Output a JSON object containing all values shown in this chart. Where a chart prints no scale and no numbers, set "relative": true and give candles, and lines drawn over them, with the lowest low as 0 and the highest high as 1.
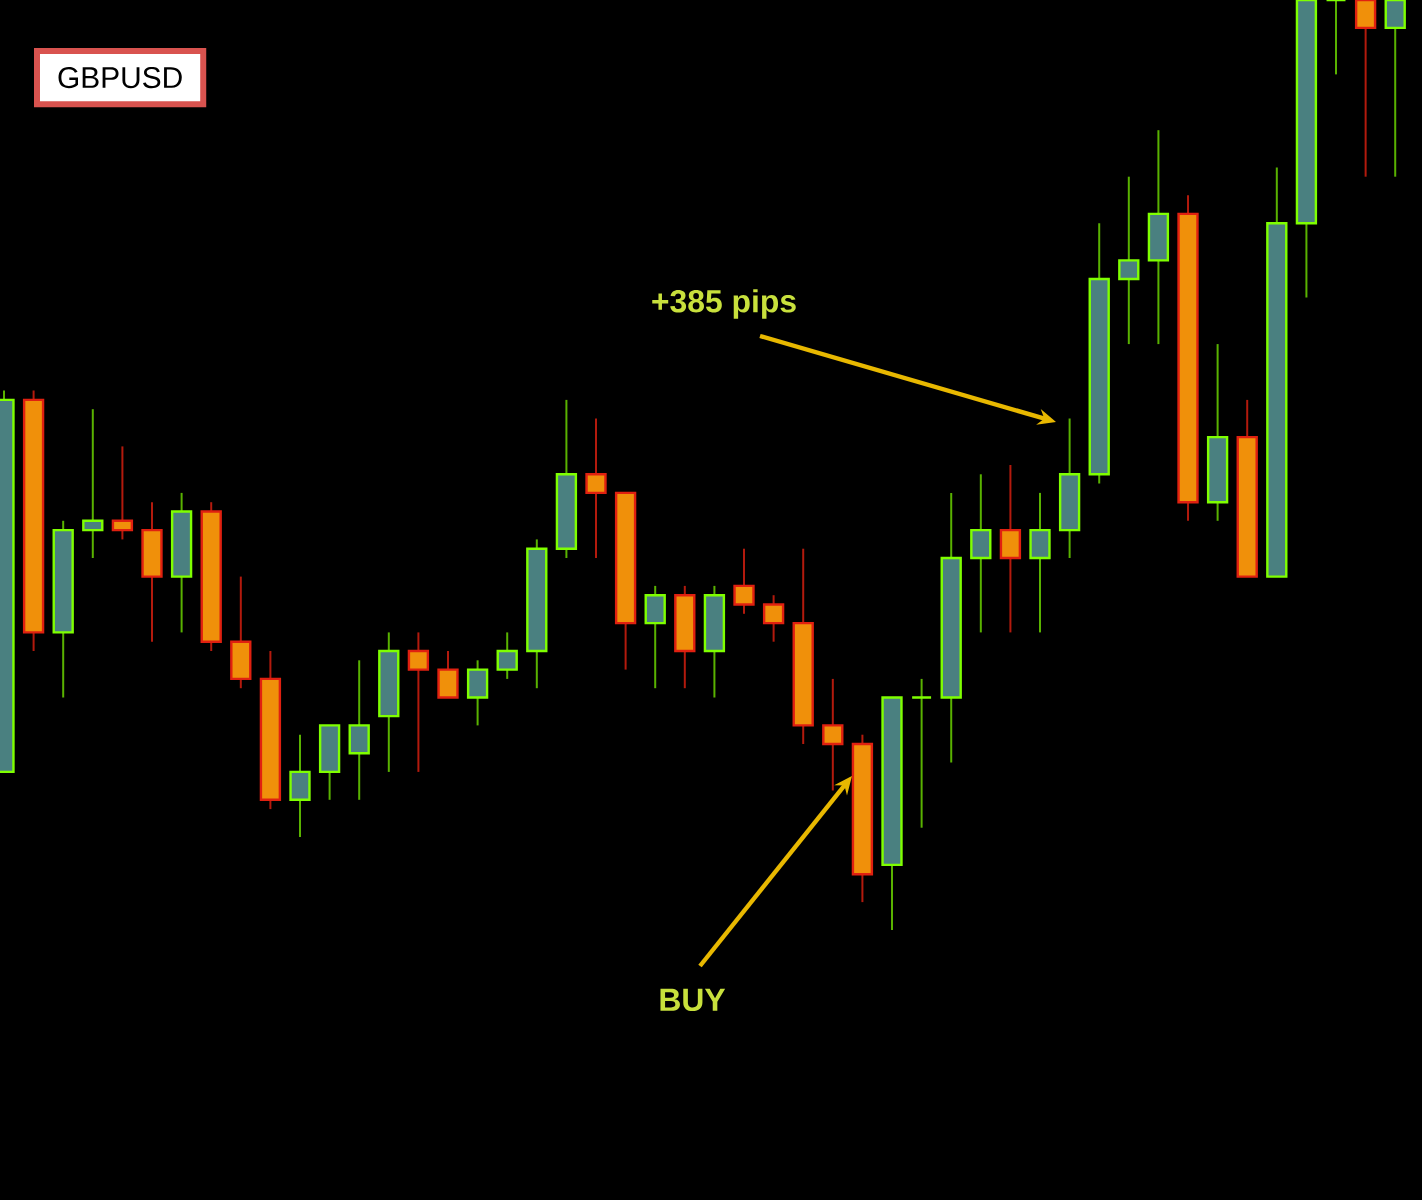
{
  "chart_data": {
    "type": "candlestick",
    "title": "GBPUSD",
    "relative": true,
    "annotations": [
      "+385 pips",
      "BUY"
    ],
    "categories": [
      null,
      null,
      null,
      null,
      null,
      null,
      null,
      null,
      null,
      null,
      null,
      null,
      null,
      null,
      null,
      null,
      null,
      null,
      null,
      null,
      null,
      null,
      null,
      null,
      null,
      null,
      null,
      null,
      null,
      null,
      null,
      null,
      null,
      null,
      null,
      null,
      null,
      null,
      null,
      null,
      null,
      null,
      null,
      null,
      null,
      null,
      null,
      null
    ],
    "ohlc": [
      [
        0.17,
        0.58,
        0.17,
        0.57
      ],
      [
        0.57,
        0.58,
        0.3,
        0.32
      ],
      [
        0.32,
        0.44,
        0.25,
        0.43
      ],
      [
        0.43,
        0.56,
        0.4,
        0.44
      ],
      [
        0.44,
        0.52,
        0.42,
        0.43
      ],
      [
        0.43,
        0.46,
        0.31,
        0.38
      ],
      [
        0.38,
        0.47,
        0.32,
        0.45
      ],
      [
        0.45,
        0.46,
        0.3,
        0.31
      ],
      [
        0.31,
        0.38,
        0.26,
        0.27
      ],
      [
        0.27,
        0.3,
        0.13,
        0.14
      ],
      [
        0.14,
        0.21,
        0.1,
        0.17
      ],
      [
        0.17,
        0.22,
        0.14,
        0.22
      ],
      [
        0.19,
        0.29,
        0.14,
        0.22
      ],
      [
        0.23,
        0.32,
        0.17,
        0.3
      ],
      [
        0.3,
        0.32,
        0.17,
        0.28
      ],
      [
        0.28,
        0.3,
        0.25,
        0.25
      ],
      [
        0.25,
        0.29,
        0.22,
        0.28
      ],
      [
        0.28,
        0.32,
        0.27,
        0.3
      ],
      [
        0.3,
        0.42,
        0.26,
        0.41
      ],
      [
        0.41,
        0.57,
        0.4,
        0.49
      ],
      [
        0.49,
        0.55,
        0.4,
        0.47
      ],
      [
        0.47,
        0.47,
        0.28,
        0.33
      ],
      [
        0.33,
        0.37,
        0.26,
        0.36
      ],
      [
        0.36,
        0.37,
        0.26,
        0.3
      ],
      [
        0.3,
        0.37,
        0.25,
        0.36
      ],
      [
        0.37,
        0.41,
        0.34,
        0.35
      ],
      [
        0.35,
        0.36,
        0.31,
        0.33
      ],
      [
        0.33,
        0.41,
        0.2,
        0.22
      ],
      [
        0.22,
        0.27,
        0.15,
        0.2
      ],
      [
        0.2,
        0.21,
        0.03,
        0.06
      ],
      [
        0.07,
        0.25,
        0.0,
        0.25
      ],
      [
        0.25,
        0.27,
        0.11,
        0.25
      ],
      [
        0.25,
        0.47,
        0.18,
        0.4
      ],
      [
        0.4,
        0.49,
        0.32,
        0.43
      ],
      [
        0.43,
        0.5,
        0.32,
        0.4
      ],
      [
        0.4,
        0.47,
        0.32,
        0.43
      ],
      [
        0.43,
        0.55,
        0.4,
        0.49
      ],
      [
        0.49,
        0.76,
        0.48,
        0.7
      ],
      [
        0.7,
        0.81,
        0.63,
        0.72
      ],
      [
        0.72,
        0.86,
        0.63,
        0.77
      ],
      [
        0.77,
        0.79,
        0.44,
        0.46
      ],
      [
        0.46,
        0.63,
        0.44,
        0.53
      ],
      [
        0.53,
        0.57,
        0.38,
        0.38
      ],
      [
        0.38,
        0.82,
        0.38,
        0.76
      ],
      [
        0.76,
        1.0,
        0.68,
        1.0
      ],
      [
        1.0,
        1.0,
        0.92,
        1.0
      ],
      [
        1.0,
        1.0,
        0.81,
        0.97
      ],
      [
        0.97,
        1.0,
        0.81,
        1.0
      ]
    ]
  }
}
